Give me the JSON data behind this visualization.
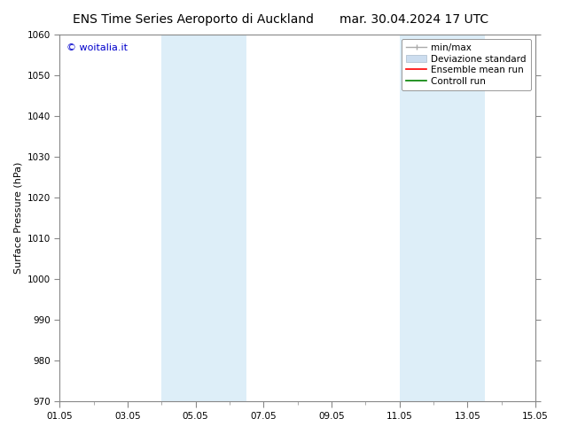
{
  "title_left": "ENS Time Series Aeroporto di Auckland",
  "title_right": "mar. 30.04.2024 17 UTC",
  "ylabel": "Surface Pressure (hPa)",
  "ylim": [
    970,
    1060
  ],
  "yticks": [
    970,
    980,
    990,
    1000,
    1010,
    1020,
    1030,
    1040,
    1050,
    1060
  ],
  "xlim_start": 0,
  "xlim_end": 14,
  "xtick_labels": [
    "01.05",
    "03.05",
    "05.05",
    "07.05",
    "09.05",
    "11.05",
    "13.05",
    "15.05"
  ],
  "xtick_positions": [
    0,
    2,
    4,
    6,
    8,
    10,
    12,
    14
  ],
  "shaded_bands": [
    {
      "x_start": 3.0,
      "x_end": 5.5
    },
    {
      "x_start": 10.0,
      "x_end": 12.5
    }
  ],
  "shaded_color": "#ddeef8",
  "watermark_text": "© woitalia.it",
  "watermark_color": "#0000cc",
  "bg_color": "#ffffff",
  "title_fontsize": 10,
  "axis_label_fontsize": 8,
  "tick_fontsize": 7.5,
  "legend_fontsize": 7.5
}
